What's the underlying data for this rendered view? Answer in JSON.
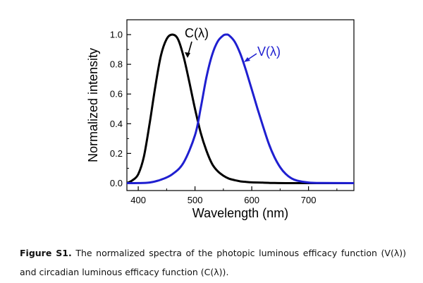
{
  "chart_data": {
    "type": "line",
    "xlabel": "Wavelength (nm)",
    "ylabel": "Normalized intensity",
    "xlim": [
      380,
      780
    ],
    "ylim": [
      -0.05,
      1.1
    ],
    "xticks": [
      400,
      500,
      600,
      700
    ],
    "xtick_labels": [
      "400",
      "500",
      "600",
      "700"
    ],
    "yticks": [
      0.0,
      0.2,
      0.4,
      0.6,
      0.8,
      1.0
    ],
    "ytick_labels": [
      "0.0",
      "0.2",
      "0.4",
      "0.6",
      "0.8",
      "1.0"
    ],
    "series": [
      {
        "name": "C(λ)",
        "label": "C(λ)",
        "color": "#000000",
        "x": [
          380,
          390,
          400,
          410,
          420,
          430,
          440,
          450,
          460,
          470,
          480,
          490,
          500,
          510,
          520,
          530,
          540,
          550,
          560,
          570,
          580,
          590,
          600,
          620,
          640,
          660,
          700,
          780
        ],
        "y": [
          0.0,
          0.02,
          0.06,
          0.18,
          0.4,
          0.65,
          0.86,
          0.97,
          1.0,
          0.97,
          0.85,
          0.68,
          0.5,
          0.34,
          0.22,
          0.13,
          0.08,
          0.05,
          0.03,
          0.02,
          0.012,
          0.008,
          0.005,
          0.003,
          0.001,
          0.0,
          0.0,
          0.0
        ]
      },
      {
        "name": "V(λ)",
        "label": "V(λ)",
        "color": "#1f1fd0",
        "x": [
          380,
          400,
          420,
          440,
          460,
          480,
          500,
          510,
          520,
          530,
          540,
          550,
          555,
          560,
          570,
          580,
          590,
          600,
          610,
          620,
          630,
          640,
          650,
          660,
          670,
          680,
          700,
          720,
          780
        ],
        "y": [
          0.0,
          0.0004,
          0.004,
          0.023,
          0.06,
          0.139,
          0.323,
          0.503,
          0.71,
          0.862,
          0.954,
          0.995,
          1.0,
          0.995,
          0.952,
          0.87,
          0.757,
          0.631,
          0.503,
          0.381,
          0.265,
          0.175,
          0.107,
          0.061,
          0.032,
          0.017,
          0.004,
          0.001,
          0.0
        ]
      }
    ]
  },
  "caption": {
    "label": "Figure S1.",
    "text": "The normalized spectra of the photopic luminous efficacy function (V(λ)) and circadian luminous efficacy function (C(λ))."
  }
}
